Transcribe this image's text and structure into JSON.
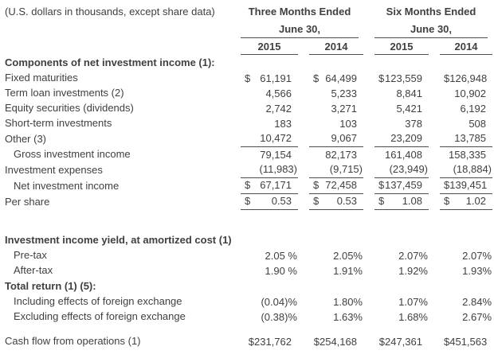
{
  "meta_label": "(U.S. dollars in thousands, except share data)",
  "currency_symbol": "$",
  "colors": {
    "text": "#404040",
    "rule": "#4d4d4d",
    "background": "#ffffff"
  },
  "header": {
    "groups": [
      {
        "title": "Three Months Ended",
        "subtitle": "June 30,",
        "years": [
          "2015",
          "2014"
        ]
      },
      {
        "title": "Six Months Ended",
        "subtitle": "June 30,",
        "years": [
          "2015",
          "2014"
        ]
      }
    ]
  },
  "rows": [
    {
      "type": "section",
      "label": "Components of net investment income (1):"
    },
    {
      "type": "data",
      "label": "Fixed maturities",
      "indent": 0,
      "currency": true,
      "rule_below": false,
      "values": [
        "61,191",
        "64,499",
        "123,559",
        "126,948"
      ]
    },
    {
      "type": "data",
      "label": "Term loan investments (2)",
      "indent": 0,
      "currency": false,
      "rule_below": false,
      "values": [
        "4,566",
        "5,233",
        "8,841",
        "10,902"
      ]
    },
    {
      "type": "data",
      "label": "Equity securities (dividends)",
      "indent": 0,
      "currency": false,
      "rule_below": false,
      "values": [
        "2,742",
        "3,271",
        "5,421",
        "6,192"
      ]
    },
    {
      "type": "data",
      "label": "Short-term investments",
      "indent": 0,
      "currency": false,
      "rule_below": false,
      "values": [
        "183",
        "103",
        "378",
        "508"
      ]
    },
    {
      "type": "data",
      "label": "Other (3)",
      "indent": 0,
      "currency": false,
      "rule_below": true,
      "values": [
        "10,472",
        "9,067",
        "23,209",
        "13,785"
      ]
    },
    {
      "type": "data",
      "label": "Gross investment income",
      "indent": 1,
      "currency": false,
      "rule_below": false,
      "values": [
        "79,154",
        "82,173",
        "161,408",
        "158,335"
      ]
    },
    {
      "type": "data",
      "label": "Investment expenses",
      "indent": 0,
      "currency": false,
      "rule_below": true,
      "values": [
        "(11,983)",
        "(9,715)",
        "(23,949)",
        "(18,884)"
      ]
    },
    {
      "type": "data",
      "label": "Net investment income",
      "indent": 1,
      "currency": true,
      "rule_below": true,
      "values": [
        "67,171",
        "72,458",
        "137,459",
        "139,451"
      ]
    },
    {
      "type": "data",
      "label": "Per share",
      "indent": 0,
      "currency": true,
      "rule_below": true,
      "values": [
        "0.53",
        "0.53",
        "1.08",
        "1.02"
      ]
    },
    {
      "type": "spacer",
      "height": 28
    },
    {
      "type": "section",
      "label": "Investment income yield, at amortized cost (1) (4):"
    },
    {
      "type": "data",
      "label": "Pre-tax",
      "indent": 1,
      "currency": false,
      "rule_below": false,
      "values": [
        "2.05 %",
        "2.05%",
        "2.07%",
        "2.07%"
      ]
    },
    {
      "type": "data",
      "label": "After-tax",
      "indent": 1,
      "currency": false,
      "rule_below": false,
      "values": [
        "1.90 %",
        "1.91%",
        "1.92%",
        "1.93%"
      ]
    },
    {
      "type": "section",
      "label": "Total return (1) (5):"
    },
    {
      "type": "data",
      "label": "Including effects of foreign exchange",
      "indent": 1,
      "currency": false,
      "rule_below": false,
      "values": [
        "(0.04)%",
        "1.80%",
        "1.07%",
        "2.84%"
      ]
    },
    {
      "type": "data",
      "label": "Excluding effects of foreign exchange",
      "indent": 1,
      "currency": false,
      "rule_below": false,
      "values": [
        "(0.38)%",
        "1.63%",
        "1.68%",
        "2.67%"
      ]
    },
    {
      "type": "spacer",
      "height": 12
    },
    {
      "type": "data",
      "label": "Cash flow from operations (1)",
      "indent": 0,
      "currency": false,
      "rule_below": false,
      "values": [
        "$231,762",
        "$254,168",
        "$247,361",
        "$451,563"
      ]
    }
  ]
}
